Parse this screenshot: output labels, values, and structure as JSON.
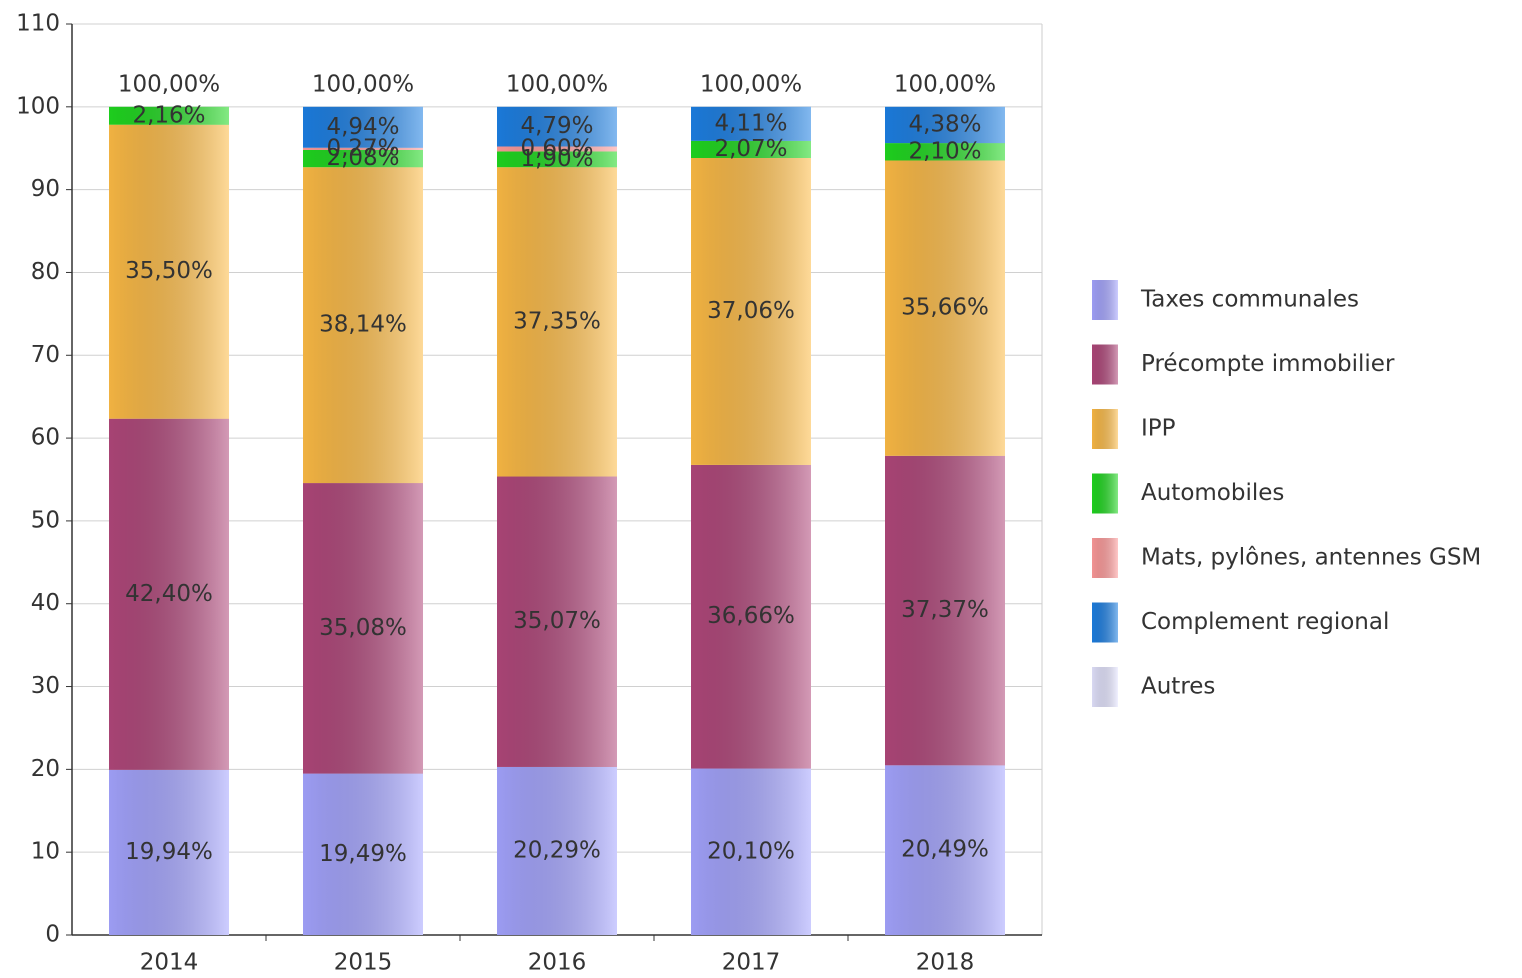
{
  "chart_data": {
    "type": "stacked_bar",
    "categories": [
      "2014",
      "2015",
      "2016",
      "2017",
      "2018"
    ],
    "series": [
      {
        "name": "Taxes communales",
        "color": "#a4a4ff",
        "values": [
          19.94,
          19.49,
          20.29,
          20.1,
          20.49
        ],
        "value_labels": [
          "19,94%",
          "19,49%",
          "20,29%",
          "20,10%",
          "20,49%"
        ]
      },
      {
        "name": "Précompte immobilier",
        "color": "#b0477a",
        "values": [
          42.4,
          35.08,
          35.07,
          36.66,
          37.37
        ],
        "value_labels": [
          "42,40%",
          "35,08%",
          "35,07%",
          "36,66%",
          "37,37%"
        ]
      },
      {
        "name": "IPP",
        "color": "#fdbb45",
        "values": [
          35.5,
          38.14,
          37.35,
          37.06,
          35.66
        ],
        "value_labels": [
          "35,50%",
          "38,14%",
          "37,35%",
          "37,06%",
          "35,66%"
        ]
      },
      {
        "name": "Automobiles",
        "color": "#1fd81f",
        "values": [
          2.16,
          2.08,
          1.9,
          2.07,
          2.1
        ],
        "value_labels": [
          "2,16%",
          "2,08%",
          "1,90%",
          "2,07%",
          "2,10%"
        ]
      },
      {
        "name": "Mats, pylônes, antennes GSM",
        "color": "#ff9a9a",
        "values": [
          null,
          0.27,
          0.6,
          null,
          null
        ],
        "value_labels": [
          null,
          "0,27%",
          "0,60%",
          null,
          null
        ]
      },
      {
        "name": "Complement regional",
        "color": "#1c7fe3",
        "values": [
          null,
          4.94,
          4.79,
          4.11,
          4.38
        ],
        "value_labels": [
          null,
          "4,94%",
          "4,79%",
          "4,11%",
          "4,38%"
        ]
      },
      {
        "name": "Autres",
        "color": "#e4e4ff",
        "values": [
          null,
          null,
          null,
          null,
          null
        ],
        "value_labels": [
          null,
          null,
          null,
          null,
          null
        ]
      }
    ],
    "totals": [
      100,
      100,
      100,
      100,
      100
    ],
    "total_labels": [
      "100,00%",
      "100,00%",
      "100,00%",
      "100,00%",
      "100,00%"
    ],
    "ylim": [
      0,
      110
    ],
    "yticks": [
      0,
      10,
      20,
      30,
      40,
      50,
      60,
      70,
      80,
      90,
      100,
      110
    ],
    "grid": true,
    "legend": "right"
  }
}
